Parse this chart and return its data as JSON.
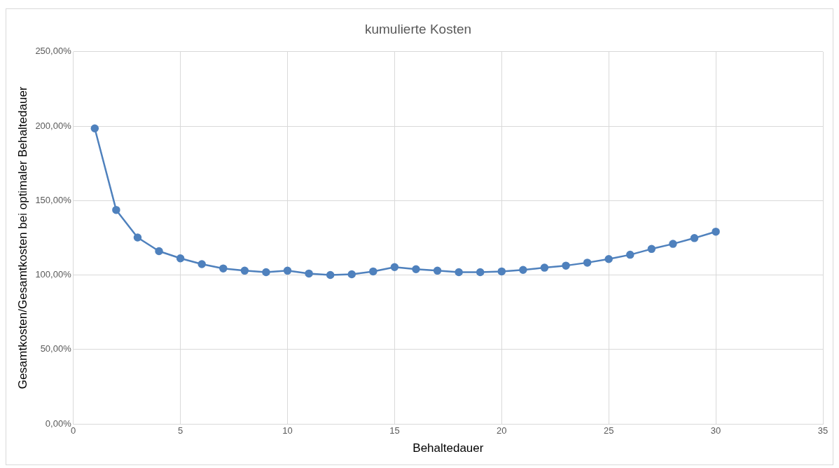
{
  "chart_data": {
    "type": "line",
    "title": "kumulierte Kosten",
    "xlabel": "Behaltedauer",
    "ylabel": "Gesamtkosten/Gesamtkosten bei optimaler Behaltedauer",
    "x": [
      1,
      2,
      3,
      4,
      5,
      6,
      7,
      8,
      9,
      10,
      11,
      12,
      13,
      14,
      15,
      16,
      17,
      18,
      19,
      20,
      21,
      22,
      23,
      24,
      25,
      26,
      27,
      28,
      29,
      30
    ],
    "series": [
      {
        "color": "#4f81bd",
        "values": [
          198.5,
          143.7,
          125.2,
          116,
          111.2,
          107.3,
          104.4,
          102.9,
          101.9,
          102.9,
          101,
          100,
          100.5,
          102.4,
          105.3,
          103.9,
          102.9,
          101.9,
          101.9,
          102.4,
          103.4,
          104.9,
          106.3,
          108.3,
          110.7,
          113.6,
          117.5,
          120.9,
          124.8,
          129.1
        ]
      }
    ],
    "xlim": [
      0,
      35
    ],
    "xticks": [
      0,
      5,
      10,
      15,
      20,
      25,
      30,
      35
    ],
    "ylim": [
      0,
      250
    ],
    "yticks": [
      {
        "value": 0,
        "label": "0,00%"
      },
      {
        "value": 50,
        "label": "50,00%"
      },
      {
        "value": 100,
        "label": "100,00%"
      },
      {
        "value": 150,
        "label": "150,00%"
      },
      {
        "value": 200,
        "label": "200,00%"
      },
      {
        "value": 250,
        "label": "250,00%"
      }
    ],
    "grid": true,
    "legend": false,
    "marker": "circle",
    "line_style": "solid"
  }
}
